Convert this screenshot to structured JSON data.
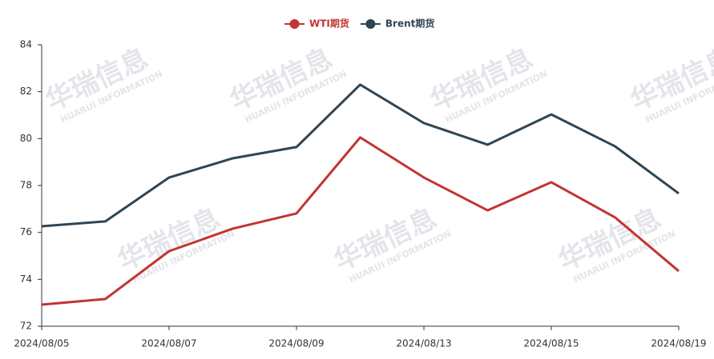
{
  "chart_data": {
    "type": "line",
    "watermark": {
      "name": "华瑞信息",
      "sub": "HUARUI INFORMATION"
    },
    "categories": [
      "2024/08/05",
      null,
      "2024/08/07",
      null,
      "2024/08/09",
      null,
      "2024/08/13",
      null,
      "2024/08/15",
      null,
      "2024/08/19"
    ],
    "series": [
      {
        "name": "WTI期货",
        "color": "#c23531",
        "values": [
          72.92,
          73.16,
          75.2,
          76.16,
          76.81,
          80.05,
          78.34,
          76.94,
          78.14,
          76.64,
          74.35
        ]
      },
      {
        "name": "Brent期货",
        "color": "#2f4554",
        "values": [
          76.26,
          76.47,
          78.34,
          79.16,
          79.64,
          82.3,
          80.66,
          79.74,
          81.03,
          79.67,
          77.66
        ]
      }
    ],
    "ylim": [
      72,
      84
    ],
    "yticks": [
      72,
      74,
      76,
      78,
      80,
      82,
      84
    ],
    "grid": false,
    "legend": "top"
  }
}
